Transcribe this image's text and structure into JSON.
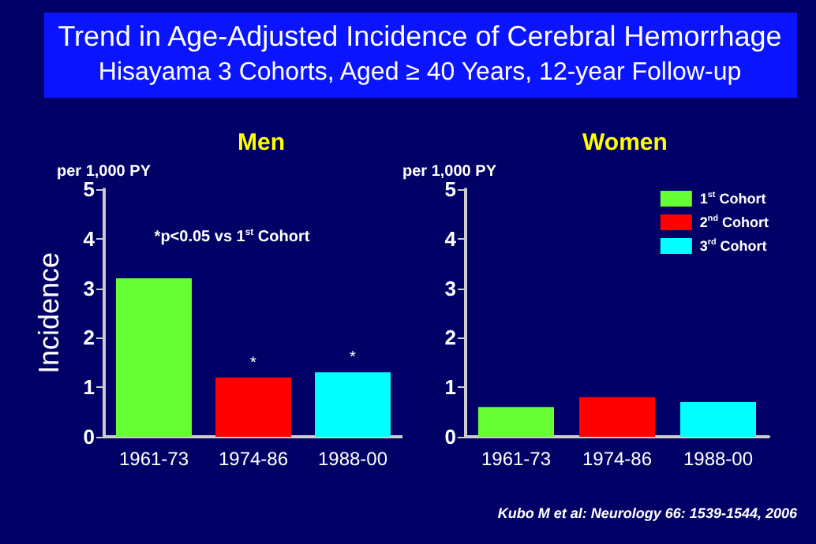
{
  "chart_data": [
    {
      "type": "other",
      "title": "Trend in Age-Adjusted Incidence of Cerebral Hemorrhage",
      "subtitle": "Hisayama 3 Cohorts, Aged ≥ 40 Years, 12-year Follow-up"
    },
    {
      "type": "bar",
      "title": "Men",
      "ylabel": "Incidence",
      "categories": [
        "1961-73",
        "1974-86",
        "1988-00"
      ],
      "values": [
        3.2,
        1.2,
        1.3
      ],
      "colors": [
        "#66ff33",
        "#ff0000",
        "#00ffff"
      ],
      "ylim": [
        0,
        5
      ],
      "yticks": [
        0,
        1,
        2,
        3,
        4,
        5
      ],
      "legend": false,
      "annotations": [
        "per 1,000 PY",
        "*p<0.05 vs 1$^{st}$ Cohort",
        {
          "text": "*",
          "x": "1974-86",
          "y": 1.2
        },
        {
          "text": "*",
          "x": "1988-00",
          "y": 1.3
        }
      ]
    },
    {
      "type": "bar",
      "title": "Women",
      "categories": [
        "1961-73",
        "1974-86",
        "1988-00"
      ],
      "series": [
        {
          "name": "1$^{st}$ Cohort",
          "color": "#66ff33",
          "values": [
            0.6,
            null,
            null
          ]
        },
        {
          "name": "2$^{nd}$ Cohort",
          "color": "#ff0000",
          "values": [
            null,
            0.8,
            null
          ]
        },
        {
          "name": "3$^{rd}$ Cohort",
          "color": "#00ffff",
          "values": [
            null,
            null,
            0.7
          ]
        }
      ],
      "ylim": [
        0,
        5
      ],
      "yticks": [
        0,
        1,
        2,
        3,
        4,
        5
      ],
      "legend": "top right",
      "annotations": [
        "per 1,000 PY",
        "Kubo M et al: Neurology 66: 1539-1544, 2006"
      ]
    }
  ]
}
